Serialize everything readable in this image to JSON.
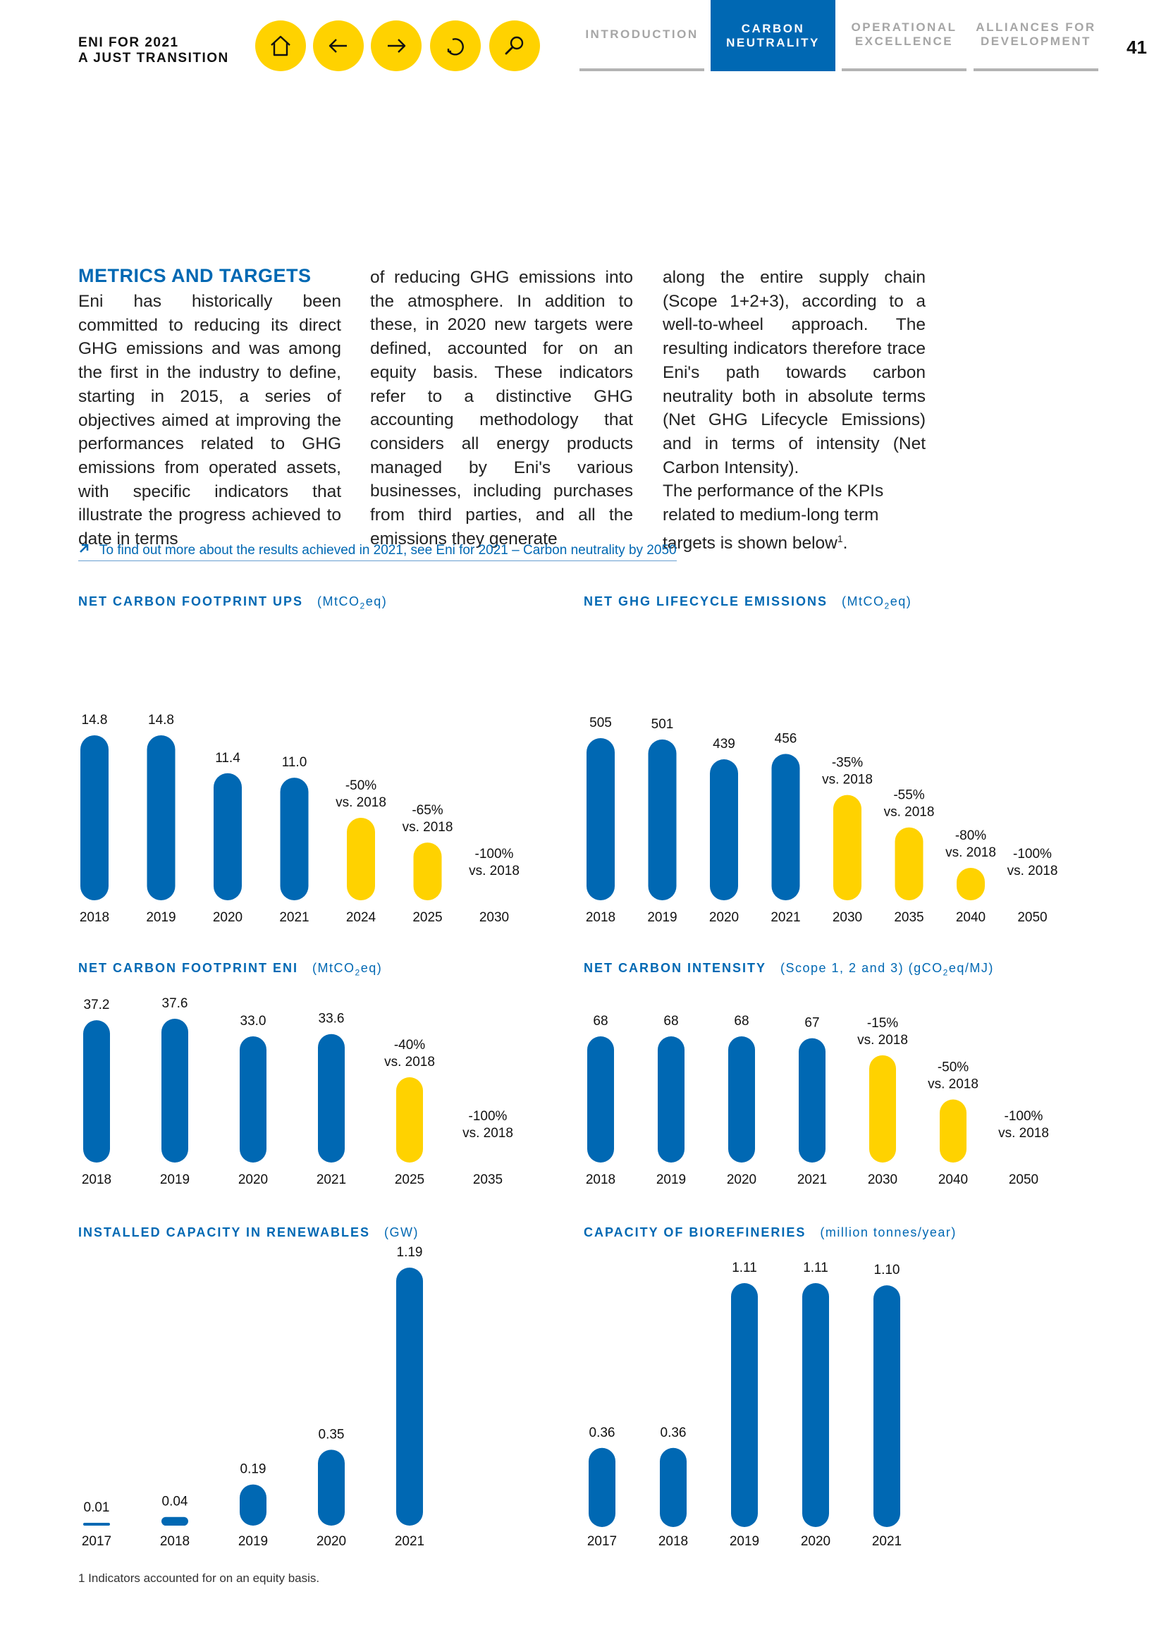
{
  "header": {
    "brand_line1": "ENI FOR 2021",
    "brand_line2": "A JUST TRANSITION",
    "nav_icons": [
      "home-icon",
      "arrow-left-icon",
      "arrow-right-icon",
      "undo-icon",
      "search-icon"
    ],
    "tabs": [
      {
        "line1": "INTRODUCTION",
        "line2": ""
      },
      {
        "line1": "CARBON",
        "line2": "NEUTRALITY"
      },
      {
        "line1": "OPERATIONAL",
        "line2": "EXCELLENCE"
      },
      {
        "line1": "ALLIANCES FOR",
        "line2": "DEVELOPMENT"
      }
    ],
    "page_number": "41"
  },
  "colors": {
    "blue": "#0068B3",
    "yellow": "#FFD200"
  },
  "section": {
    "title": "METRICS AND TARGETS",
    "col1": "Eni has historically been committed to reducing its direct GHG emissions and was among the first in the industry to define, starting in 2015, a series of objectives aimed at improving the performances related to GHG emissions from operated assets, with specific indicators that illustrate the progress achieved to date in terms",
    "col2": "of reducing GHG emissions into the atmosphere. In addition to these, in 2020 new targets were defined, accounted for on an equity basis. These indicators refer to a distinctive GHG accounting methodology that considers all energy products managed by Eni's various businesses, including purchases from third parties, and all the emissions they generate",
    "col3a": "along the entire supply chain (Scope 1+2+3), according to a well-to-wheel approach. The resulting indicators therefore trace Eni's path towards carbon neutrality both in absolute terms (Net GHG Lifecycle Emissions) and in terms of intensity (Net Carbon Intensity).",
    "col3b": "The performance of the KPIs related to medium-long term targets is shown below",
    "col3b_sup": "1",
    "col3b_end": "."
  },
  "link_text": "To find out more about the results achieved in 2021, see Eni for 2021 – Carbon neutrality by 2050",
  "footnote": "1  Indicators accounted for on an equity basis.",
  "chart_data": [
    {
      "type": "bar",
      "title": "NET CARBON FOOTPRINT UPS",
      "unit_prefix": "(MtCO",
      "unit_sub": "2",
      "unit_suffix": "eq)",
      "categories": [
        "2018",
        "2019",
        "2020",
        "2021",
        "2024",
        "2025",
        "2030"
      ],
      "values": [
        14.8,
        14.8,
        11.4,
        11.0,
        7.4,
        5.18,
        0
      ],
      "labels": [
        [
          "14.8"
        ],
        [
          "14.8"
        ],
        [
          "11.4"
        ],
        [
          "11.0"
        ],
        [
          "-50%",
          "vs. 2018"
        ],
        [
          "-65%",
          "vs. 2018"
        ],
        [
          "-100%",
          "vs. 2018"
        ]
      ],
      "kinds": [
        "actual",
        "actual",
        "actual",
        "actual",
        "target",
        "target",
        "target"
      ]
    },
    {
      "type": "bar",
      "title": "NET GHG LIFECYCLE EMISSIONS",
      "unit_prefix": "(MtCO",
      "unit_sub": "2",
      "unit_suffix": "eq)",
      "categories": [
        "2018",
        "2019",
        "2020",
        "2021",
        "2030",
        "2035",
        "2040",
        "2050"
      ],
      "values": [
        505,
        501,
        439,
        456,
        328,
        227,
        101,
        0
      ],
      "labels": [
        [
          "505"
        ],
        [
          "501"
        ],
        [
          "439"
        ],
        [
          "456"
        ],
        [
          "-35%",
          "vs. 2018"
        ],
        [
          "-55%",
          "vs. 2018"
        ],
        [
          "-80%",
          "vs. 2018"
        ],
        [
          "-100%",
          "vs. 2018"
        ]
      ],
      "kinds": [
        "actual",
        "actual",
        "actual",
        "actual",
        "target",
        "target",
        "target",
        "target"
      ]
    },
    {
      "type": "bar",
      "title": "NET CARBON FOOTPRINT ENI",
      "unit_prefix": "(MtCO",
      "unit_sub": "2",
      "unit_suffix": "eq)",
      "categories": [
        "2018",
        "2019",
        "2020",
        "2021",
        "2025",
        "2035"
      ],
      "values": [
        37.2,
        37.6,
        33.0,
        33.6,
        22.3,
        0
      ],
      "labels": [
        [
          "37.2"
        ],
        [
          "37.6"
        ],
        [
          "33.0"
        ],
        [
          "33.6"
        ],
        [
          "-40%",
          "vs. 2018"
        ],
        [
          "-100%",
          "vs. 2018"
        ]
      ],
      "kinds": [
        "actual",
        "actual",
        "actual",
        "actual",
        "target",
        "target"
      ]
    },
    {
      "type": "bar",
      "title": "NET CARBON INTENSITY",
      "unit_prefix": "(Scope 1, 2 and 3) (gCO",
      "unit_sub": "2",
      "unit_suffix": "eq/MJ)",
      "categories": [
        "2018",
        "2019",
        "2020",
        "2021",
        "2030",
        "2040",
        "2050"
      ],
      "values": [
        68,
        68,
        68,
        67,
        57.8,
        34,
        0
      ],
      "labels": [
        [
          "68"
        ],
        [
          "68"
        ],
        [
          "68"
        ],
        [
          "67"
        ],
        [
          "-15%",
          "vs. 2018"
        ],
        [
          "-50%",
          "vs. 2018"
        ],
        [
          "-100%",
          "vs. 2018"
        ]
      ],
      "kinds": [
        "actual",
        "actual",
        "actual",
        "actual",
        "target",
        "target",
        "target"
      ]
    },
    {
      "type": "bar",
      "title": "INSTALLED CAPACITY IN RENEWABLES",
      "unit_prefix": "(GW)",
      "unit_sub": "",
      "unit_suffix": "",
      "categories": [
        "2017",
        "2018",
        "2019",
        "2020",
        "2021"
      ],
      "values": [
        0.01,
        0.04,
        0.19,
        0.35,
        1.19
      ],
      "labels": [
        [
          "0.01"
        ],
        [
          "0.04"
        ],
        [
          "0.19"
        ],
        [
          "0.35"
        ],
        [
          "1.19"
        ]
      ],
      "kinds": [
        "actual",
        "actual",
        "actual",
        "actual",
        "actual"
      ]
    },
    {
      "type": "bar",
      "title": "CAPACITY OF BIOREFINERIES",
      "unit_prefix": "(million tonnes/year)",
      "unit_sub": "",
      "unit_suffix": "",
      "categories": [
        "2017",
        "2018",
        "2019",
        "2020",
        "2021"
      ],
      "values": [
        0.36,
        0.36,
        1.11,
        1.11,
        1.1
      ],
      "labels": [
        [
          "0.36"
        ],
        [
          "0.36"
        ],
        [
          "1.11"
        ],
        [
          "1.11"
        ],
        [
          "1.10"
        ]
      ],
      "kinds": [
        "actual",
        "actual",
        "actual",
        "actual",
        "actual"
      ]
    }
  ]
}
